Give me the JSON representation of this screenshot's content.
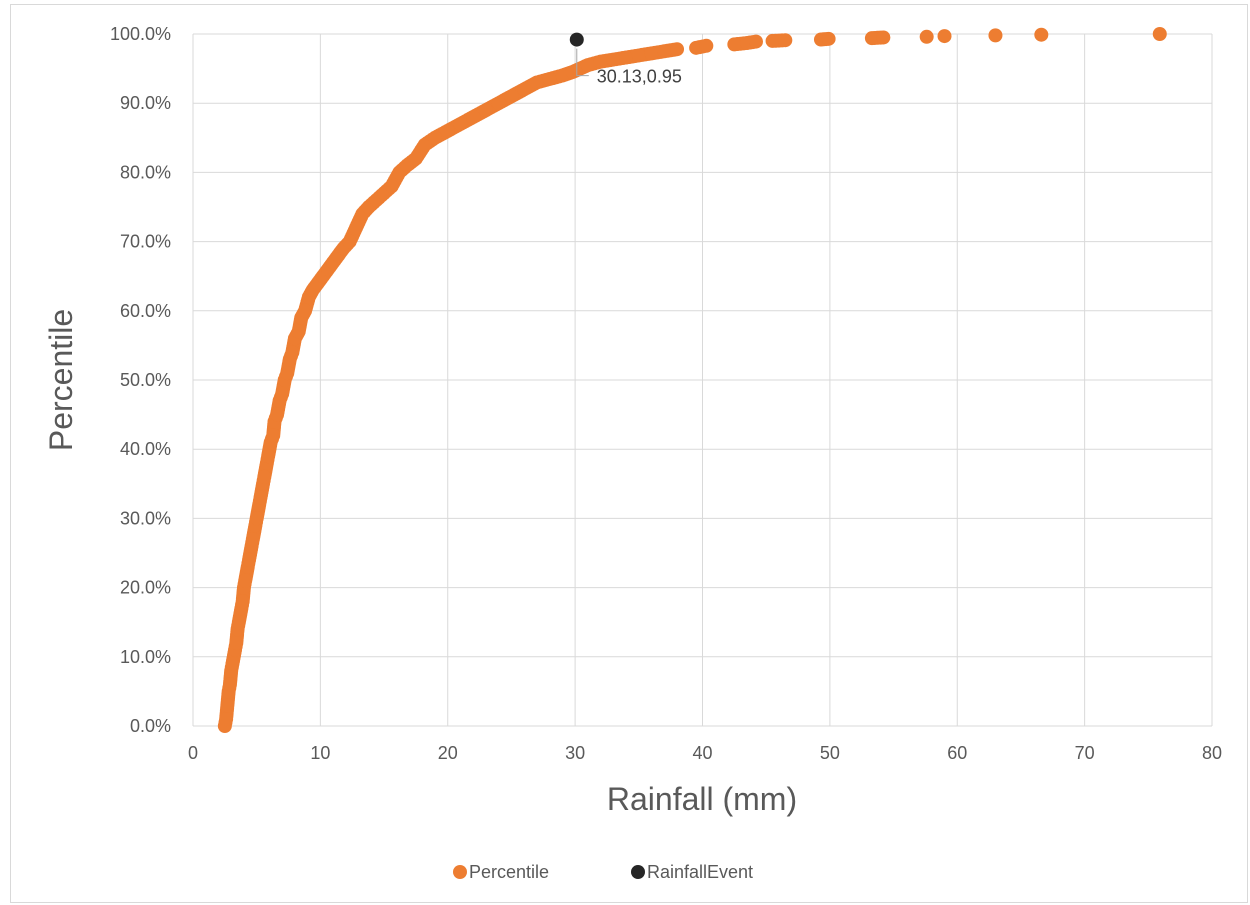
{
  "chart_data": {
    "type": "scatter",
    "xlabel": "Rainfall (mm)",
    "ylabel": "Percentile",
    "xlim": [
      0,
      80
    ],
    "ylim": [
      0,
      1
    ],
    "x_ticks": [
      0,
      10,
      20,
      30,
      40,
      50,
      60,
      70,
      80
    ],
    "x_tick_labels": [
      "0",
      "10",
      "20",
      "30",
      "40",
      "50",
      "60",
      "70",
      "80"
    ],
    "y_ticks": [
      0,
      0.1,
      0.2,
      0.3,
      0.4,
      0.5,
      0.6,
      0.7,
      0.8,
      0.9,
      1.0
    ],
    "y_tick_labels": [
      "0.0%",
      "10.0%",
      "20.0%",
      "30.0%",
      "40.0%",
      "50.0%",
      "60.0%",
      "70.0%",
      "80.0%",
      "90.0%",
      "100.0%"
    ],
    "grid": true,
    "legend_position": "bottom",
    "series": [
      {
        "name": "Percentile",
        "color": "#ed7d31",
        "points": [
          [
            2.5,
            0.0
          ],
          [
            2.6,
            0.01
          ],
          [
            2.7,
            0.03
          ],
          [
            2.8,
            0.05
          ],
          [
            2.9,
            0.06
          ],
          [
            3.0,
            0.08
          ],
          [
            3.1,
            0.09
          ],
          [
            3.3,
            0.11
          ],
          [
            3.4,
            0.12
          ],
          [
            3.5,
            0.14
          ],
          [
            3.6,
            0.15
          ],
          [
            3.8,
            0.17
          ],
          [
            3.9,
            0.18
          ],
          [
            4.0,
            0.2
          ],
          [
            4.1,
            0.21
          ],
          [
            4.3,
            0.23
          ],
          [
            4.4,
            0.24
          ],
          [
            4.6,
            0.26
          ],
          [
            4.7,
            0.27
          ],
          [
            4.9,
            0.29
          ],
          [
            5.0,
            0.3
          ],
          [
            5.2,
            0.32
          ],
          [
            5.3,
            0.33
          ],
          [
            5.5,
            0.35
          ],
          [
            5.6,
            0.36
          ],
          [
            5.8,
            0.38
          ],
          [
            5.9,
            0.39
          ],
          [
            6.1,
            0.41
          ],
          [
            6.3,
            0.42
          ],
          [
            6.4,
            0.44
          ],
          [
            6.6,
            0.45
          ],
          [
            6.8,
            0.47
          ],
          [
            7.0,
            0.48
          ],
          [
            7.2,
            0.5
          ],
          [
            7.4,
            0.51
          ],
          [
            7.6,
            0.53
          ],
          [
            7.8,
            0.54
          ],
          [
            8.0,
            0.56
          ],
          [
            8.3,
            0.57
          ],
          [
            8.5,
            0.59
          ],
          [
            8.8,
            0.6
          ],
          [
            9.1,
            0.62
          ],
          [
            9.4,
            0.63
          ],
          [
            9.8,
            0.64
          ],
          [
            10.2,
            0.65
          ],
          [
            10.6,
            0.66
          ],
          [
            11.0,
            0.67
          ],
          [
            11.4,
            0.68
          ],
          [
            11.8,
            0.69
          ],
          [
            12.3,
            0.7
          ],
          [
            12.8,
            0.72
          ],
          [
            13.3,
            0.74
          ],
          [
            13.8,
            0.75
          ],
          [
            14.4,
            0.76
          ],
          [
            15.0,
            0.77
          ],
          [
            15.6,
            0.78
          ],
          [
            16.2,
            0.8
          ],
          [
            16.8,
            0.81
          ],
          [
            17.5,
            0.82
          ],
          [
            18.2,
            0.84
          ],
          [
            19.0,
            0.85
          ],
          [
            20.0,
            0.86
          ],
          [
            21.0,
            0.87
          ],
          [
            22.0,
            0.88
          ],
          [
            23.0,
            0.89
          ],
          [
            24.0,
            0.9
          ],
          [
            25.0,
            0.91
          ],
          [
            26.0,
            0.92
          ],
          [
            27.0,
            0.93
          ],
          [
            28.0,
            0.935
          ],
          [
            29.0,
            0.94
          ],
          [
            29.8,
            0.945
          ],
          [
            31.0,
            0.955
          ],
          [
            32.0,
            0.96
          ],
          [
            33.0,
            0.963
          ],
          [
            34.0,
            0.966
          ],
          [
            35.0,
            0.969
          ],
          [
            36.0,
            0.972
          ],
          [
            37.0,
            0.975
          ],
          [
            38.0,
            0.978
          ],
          [
            39.5,
            0.98
          ],
          [
            40.3,
            0.983
          ],
          [
            42.5,
            0.985
          ],
          [
            43.5,
            0.987
          ],
          [
            44.2,
            0.989
          ],
          [
            45.5,
            0.99
          ],
          [
            46.5,
            0.991
          ],
          [
            49.3,
            0.992
          ],
          [
            49.9,
            0.993
          ],
          [
            53.3,
            0.994
          ],
          [
            54.2,
            0.995
          ],
          [
            57.6,
            0.996
          ],
          [
            59.0,
            0.997
          ],
          [
            63.0,
            0.998
          ],
          [
            66.6,
            0.999
          ],
          [
            75.9,
            1.0
          ]
        ]
      },
      {
        "name": "RainfallEvent",
        "color": "#262626",
        "points": [
          [
            30.13,
            0.95
          ]
        ]
      }
    ],
    "annotations": [
      {
        "text": "30.13,0.95",
        "x": 30.13,
        "y": 0.95
      }
    ]
  }
}
